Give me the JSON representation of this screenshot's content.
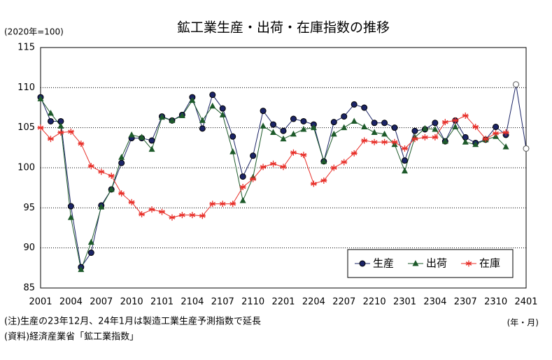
{
  "chart_data": {
    "type": "line",
    "title": "鉱工業生産・出荷・在庫指数の推移",
    "y_unit": "(2020年=100)",
    "x_unit": "(年・月)",
    "notes": [
      "(注)生産の23年12月、24年1月は製造工業生産予測指数で延長",
      "(資料)経済産業省「鉱工業指数」"
    ],
    "categories": [
      "2001",
      null,
      null,
      "2004",
      null,
      null,
      "2007",
      null,
      null,
      "2010",
      null,
      null,
      "2101",
      null,
      null,
      "2104",
      null,
      null,
      "2107",
      null,
      null,
      "2110",
      null,
      null,
      "2201",
      null,
      null,
      "2204",
      null,
      null,
      "2207",
      null,
      null,
      "2210",
      null,
      null,
      "2301",
      null,
      null,
      "2304",
      null,
      null,
      "2307",
      null,
      null,
      "2310",
      null,
      null,
      "2401"
    ],
    "series": [
      {
        "name": "生産",
        "color": "#1b2466",
        "marker": "circle",
        "open_markers": [
          47,
          48
        ],
        "values": [
          108.8,
          105.8,
          105.8,
          95.2,
          87.6,
          89.4,
          95.3,
          97.3,
          100.6,
          103.7,
          103.7,
          103.4,
          106.4,
          105.9,
          106.6,
          108.8,
          104.9,
          109.1,
          107.4,
          103.9,
          98.9,
          101.5,
          107.1,
          105.4,
          104.6,
          106.1,
          105.8,
          105.4,
          100.8,
          105.7,
          106.4,
          107.9,
          107.5,
          105.6,
          105.6,
          105.0,
          100.9,
          104.6,
          104.8,
          105.6,
          103.3,
          105.9,
          103.8,
          103.1,
          103.5,
          105.1,
          104.1,
          110.4,
          102.4
        ]
      },
      {
        "name": "出荷",
        "color": "#1d5a2a",
        "marker": "triangle",
        "values": [
          108.6,
          106.8,
          105.2,
          93.8,
          87.3,
          90.7,
          95.1,
          97.3,
          101.3,
          104.1,
          103.8,
          102.3,
          106.3,
          105.9,
          106.5,
          108.4,
          105.9,
          107.7,
          106.6,
          102.0,
          95.9,
          98.8,
          105.2,
          104.4,
          103.6,
          104.2,
          104.8,
          105.0,
          100.8,
          104.2,
          105.0,
          105.8,
          105.1,
          104.4,
          104.2,
          102.9,
          99.6,
          103.8,
          104.9,
          104.8,
          103.3,
          105.1,
          103.2,
          102.9,
          103.5,
          103.9,
          102.6,
          null,
          null
        ]
      },
      {
        "name": "在庫",
        "color": "#e8302a",
        "marker": "asterisk",
        "values": [
          105.0,
          103.6,
          104.4,
          104.5,
          103.0,
          100.2,
          99.5,
          99.0,
          96.8,
          95.7,
          94.2,
          94.8,
          94.5,
          93.8,
          94.1,
          94.1,
          94.0,
          95.5,
          95.5,
          95.5,
          97.6,
          98.6,
          100.1,
          100.5,
          100.1,
          101.9,
          101.6,
          98.0,
          98.4,
          100.0,
          100.7,
          101.8,
          103.4,
          103.2,
          103.2,
          103.2,
          102.4,
          103.6,
          103.8,
          103.8,
          105.7,
          105.9,
          106.5,
          105.1,
          103.6,
          104.3,
          104.4,
          null,
          null
        ]
      }
    ],
    "ylim": [
      85,
      115
    ],
    "yticks": [
      85,
      90,
      95,
      100,
      105,
      110,
      115
    ],
    "grid": true,
    "legend": "lower right"
  }
}
